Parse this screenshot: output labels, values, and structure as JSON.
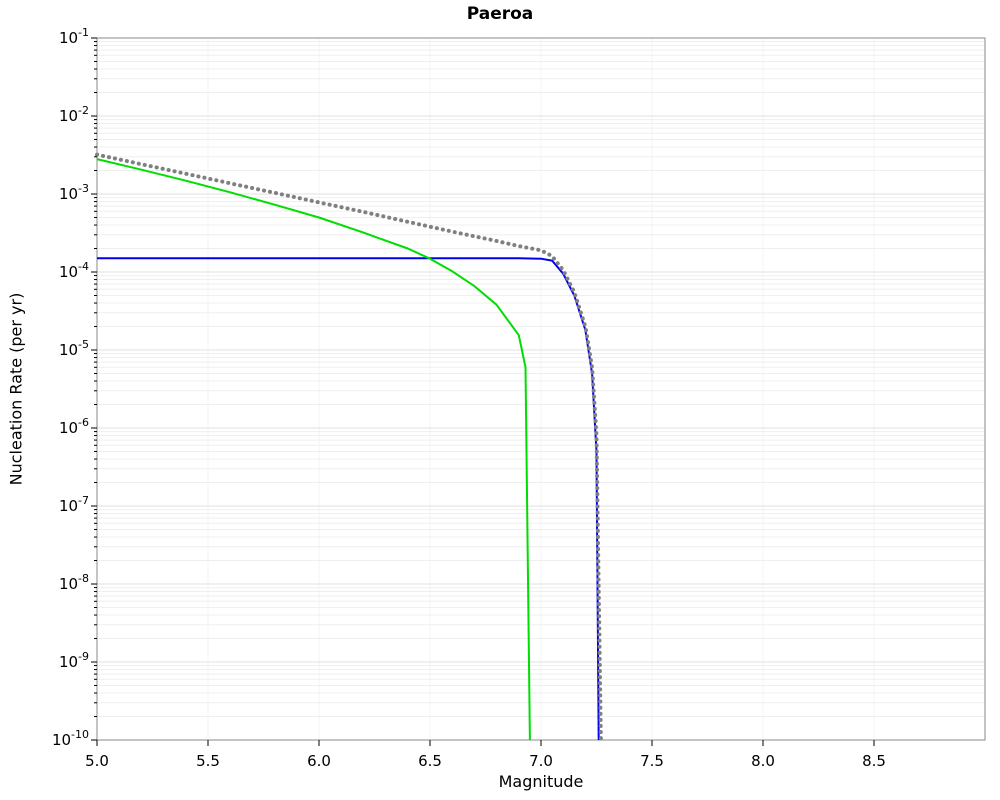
{
  "page": {
    "title": "Paeroa"
  },
  "chart_data": {
    "type": "line",
    "title": "Paeroa",
    "xlabel": "Magnitude",
    "ylabel": "Nucleation Rate (per yr)",
    "xlim": [
      5.0,
      9.0
    ],
    "y_exponent_top": -1,
    "y_exponent_bottom": -10,
    "x_tick_values": [
      5.0,
      5.5,
      6.0,
      6.5,
      7.0,
      7.5,
      8.0,
      8.5
    ],
    "x_tick_labels": [
      "5.0",
      "5.5",
      "6.0",
      "6.5",
      "7.0",
      "7.5",
      "8.0",
      "8.5"
    ],
    "y_tick_exponents": [
      -1,
      -2,
      -3,
      -4,
      -5,
      -6,
      -7,
      -8,
      -9,
      -10
    ],
    "y_tick_base": "10",
    "grid": true,
    "legend_position": "none",
    "colors": {
      "grid_major": "#e2e2e2",
      "grid_minor": "#efefef",
      "grid_vertical": "#f3f3f3",
      "frame": "#8a8a8a",
      "tick": "#000000"
    },
    "series": [
      {
        "name": "blue-solid-curve",
        "color": "#0000ee",
        "dash": "solid",
        "width": 2,
        "points": [
          [
            5.0,
            0.00015
          ],
          [
            5.5,
            0.00015
          ],
          [
            6.0,
            0.00015
          ],
          [
            6.5,
            0.00015
          ],
          [
            6.9,
            0.00015
          ],
          [
            7.0,
            0.000148
          ],
          [
            7.05,
            0.00014
          ],
          [
            7.1,
            9.5e-05
          ],
          [
            7.15,
            5e-05
          ],
          [
            7.2,
            1.8e-05
          ],
          [
            7.23,
            5e-06
          ],
          [
            7.25,
            5e-07
          ],
          [
            7.26,
            1e-10
          ]
        ]
      },
      {
        "name": "green-solid-curve",
        "color": "#00dd00",
        "dash": "solid",
        "width": 2,
        "points": [
          [
            5.0,
            0.0028
          ],
          [
            5.2,
            0.00205
          ],
          [
            5.4,
            0.00148
          ],
          [
            5.6,
            0.00105
          ],
          [
            5.8,
            0.00073
          ],
          [
            6.0,
            0.0005
          ],
          [
            6.2,
            0.00032
          ],
          [
            6.4,
            0.0002
          ],
          [
            6.5,
            0.000148
          ],
          [
            6.6,
            0.000102
          ],
          [
            6.7,
            6.6e-05
          ],
          [
            6.8,
            3.8e-05
          ],
          [
            6.9,
            1.55e-05
          ],
          [
            6.93,
            6e-06
          ],
          [
            6.95,
            1e-10
          ]
        ]
      },
      {
        "name": "gray-dotted-curve",
        "color": "#808080",
        "dash": "dot",
        "width": 4,
        "points": [
          [
            5.0,
            0.0032
          ],
          [
            5.2,
            0.00241
          ],
          [
            5.4,
            0.00182
          ],
          [
            5.6,
            0.00137
          ],
          [
            5.8,
            0.001035
          ],
          [
            6.0,
            0.00078
          ],
          [
            6.2,
            0.00059
          ],
          [
            6.4,
            0.00044
          ],
          [
            6.6,
            0.00033
          ],
          [
            6.8,
            0.00025
          ],
          [
            6.9,
            0.000215
          ],
          [
            7.0,
            0.00019
          ],
          [
            7.05,
            0.00016
          ],
          [
            7.1,
            0.000105
          ],
          [
            7.15,
            5.5e-05
          ],
          [
            7.2,
            2e-05
          ],
          [
            7.23,
            6e-06
          ],
          [
            7.25,
            8e-07
          ],
          [
            7.27,
            1e-10
          ]
        ]
      }
    ]
  }
}
